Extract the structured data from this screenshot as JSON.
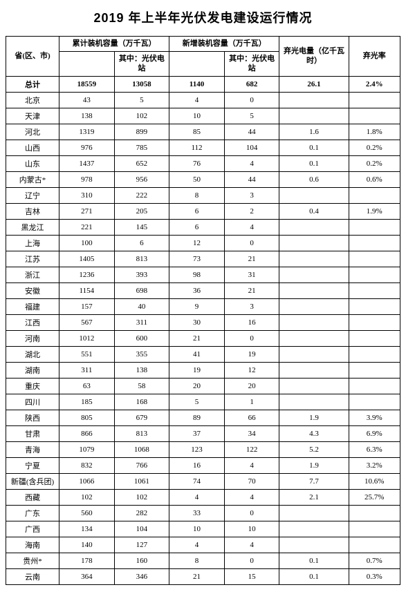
{
  "title": "2019 年上半年光伏发电建设运行情况",
  "headers": {
    "province": "省(区、市)",
    "cumulative": "累计装机容量（万千瓦）",
    "cumulative_sub": "其中：光伏电站",
    "newly": "新增装机容量（万千瓦）",
    "newly_sub": "其中：光伏电站",
    "curtailed": "弃光电量（亿千瓦时）",
    "rate": "弃光率"
  },
  "total": {
    "province": "总计",
    "cum": "18559",
    "cum_sub": "13058",
    "new": "1140",
    "new_sub": "682",
    "curtailed": "26.1",
    "rate": "2.4%"
  },
  "rows": [
    {
      "province": "北京",
      "cum": "43",
      "cum_sub": "5",
      "new": "4",
      "new_sub": "0",
      "curtailed": "",
      "rate": ""
    },
    {
      "province": "天津",
      "cum": "138",
      "cum_sub": "102",
      "new": "10",
      "new_sub": "5",
      "curtailed": "",
      "rate": ""
    },
    {
      "province": "河北",
      "cum": "1319",
      "cum_sub": "899",
      "new": "85",
      "new_sub": "44",
      "curtailed": "1.6",
      "rate": "1.8%"
    },
    {
      "province": "山西",
      "cum": "976",
      "cum_sub": "785",
      "new": "112",
      "new_sub": "104",
      "curtailed": "0.1",
      "rate": "0.2%"
    },
    {
      "province": "山东",
      "cum": "1437",
      "cum_sub": "652",
      "new": "76",
      "new_sub": "4",
      "curtailed": "0.1",
      "rate": "0.2%"
    },
    {
      "province": "内蒙古*",
      "cum": "978",
      "cum_sub": "956",
      "new": "50",
      "new_sub": "44",
      "curtailed": "0.6",
      "rate": "0.6%"
    },
    {
      "province": "辽宁",
      "cum": "310",
      "cum_sub": "222",
      "new": "8",
      "new_sub": "3",
      "curtailed": "",
      "rate": ""
    },
    {
      "province": "吉林",
      "cum": "271",
      "cum_sub": "205",
      "new": "6",
      "new_sub": "2",
      "curtailed": "0.4",
      "rate": "1.9%"
    },
    {
      "province": "黑龙江",
      "cum": "221",
      "cum_sub": "145",
      "new": "6",
      "new_sub": "4",
      "curtailed": "",
      "rate": ""
    },
    {
      "province": "上海",
      "cum": "100",
      "cum_sub": "6",
      "new": "12",
      "new_sub": "0",
      "curtailed": "",
      "rate": ""
    },
    {
      "province": "江苏",
      "cum": "1405",
      "cum_sub": "813",
      "new": "73",
      "new_sub": "21",
      "curtailed": "",
      "rate": ""
    },
    {
      "province": "浙江",
      "cum": "1236",
      "cum_sub": "393",
      "new": "98",
      "new_sub": "31",
      "curtailed": "",
      "rate": ""
    },
    {
      "province": "安徽",
      "cum": "1154",
      "cum_sub": "698",
      "new": "36",
      "new_sub": "21",
      "curtailed": "",
      "rate": ""
    },
    {
      "province": "福建",
      "cum": "157",
      "cum_sub": "40",
      "new": "9",
      "new_sub": "3",
      "curtailed": "",
      "rate": ""
    },
    {
      "province": "江西",
      "cum": "567",
      "cum_sub": "311",
      "new": "30",
      "new_sub": "16",
      "curtailed": "",
      "rate": ""
    },
    {
      "province": "河南",
      "cum": "1012",
      "cum_sub": "600",
      "new": "21",
      "new_sub": "0",
      "curtailed": "",
      "rate": ""
    },
    {
      "province": "湖北",
      "cum": "551",
      "cum_sub": "355",
      "new": "41",
      "new_sub": "19",
      "curtailed": "",
      "rate": ""
    },
    {
      "province": "湖南",
      "cum": "311",
      "cum_sub": "138",
      "new": "19",
      "new_sub": "12",
      "curtailed": "",
      "rate": ""
    },
    {
      "province": "重庆",
      "cum": "63",
      "cum_sub": "58",
      "new": "20",
      "new_sub": "20",
      "curtailed": "",
      "rate": ""
    },
    {
      "province": "四川",
      "cum": "185",
      "cum_sub": "168",
      "new": "5",
      "new_sub": "1",
      "curtailed": "",
      "rate": ""
    },
    {
      "province": "陕西",
      "cum": "805",
      "cum_sub": "679",
      "new": "89",
      "new_sub": "66",
      "curtailed": "1.9",
      "rate": "3.9%"
    },
    {
      "province": "甘肃",
      "cum": "866",
      "cum_sub": "813",
      "new": "37",
      "new_sub": "34",
      "curtailed": "4.3",
      "rate": "6.9%"
    },
    {
      "province": "青海",
      "cum": "1079",
      "cum_sub": "1068",
      "new": "123",
      "new_sub": "122",
      "curtailed": "5.2",
      "rate": "6.3%"
    },
    {
      "province": "宁夏",
      "cum": "832",
      "cum_sub": "766",
      "new": "16",
      "new_sub": "4",
      "curtailed": "1.9",
      "rate": "3.2%"
    },
    {
      "province": "新疆(含兵团)",
      "cum": "1066",
      "cum_sub": "1061",
      "new": "74",
      "new_sub": "70",
      "curtailed": "7.7",
      "rate": "10.6%"
    },
    {
      "province": "西藏",
      "cum": "102",
      "cum_sub": "102",
      "new": "4",
      "new_sub": "4",
      "curtailed": "2.1",
      "rate": "25.7%"
    },
    {
      "province": "广东",
      "cum": "560",
      "cum_sub": "282",
      "new": "33",
      "new_sub": "0",
      "curtailed": "",
      "rate": ""
    },
    {
      "province": "广西",
      "cum": "134",
      "cum_sub": "104",
      "new": "10",
      "new_sub": "10",
      "curtailed": "",
      "rate": ""
    },
    {
      "province": "海南",
      "cum": "140",
      "cum_sub": "127",
      "new": "4",
      "new_sub": "4",
      "curtailed": "",
      "rate": ""
    },
    {
      "province": "贵州*",
      "cum": "178",
      "cum_sub": "160",
      "new": "8",
      "new_sub": "0",
      "curtailed": "0.1",
      "rate": "0.7%"
    },
    {
      "province": "云南",
      "cum": "364",
      "cum_sub": "346",
      "new": "21",
      "new_sub": "15",
      "curtailed": "0.1",
      "rate": "0.3%"
    }
  ],
  "style": {
    "border_color": "#000000",
    "bg_color": "#ffffff",
    "title_fontsize": 18,
    "cell_fontsize": 11
  }
}
